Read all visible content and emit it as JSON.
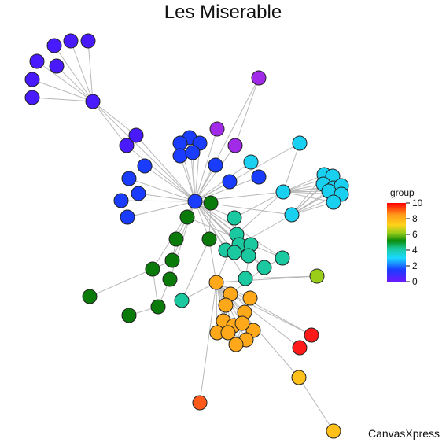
{
  "title": "Les Miserable",
  "watermark": "CanvasXpress",
  "legend": {
    "title": "group",
    "min": 0,
    "max": 10,
    "ticks": [
      "10",
      "8",
      "6",
      "4",
      "2",
      "0"
    ]
  },
  "palette": {
    "0": "#4a1aff",
    "1": "#1a3cff",
    "2": "#1ad0f0",
    "3": "#1ac9a0",
    "4": "#0a7a0a",
    "5": "#9acd1a",
    "6": "#ffc01a",
    "7": "#ffa81a",
    "8": "#ff5a1a",
    "9": "#ff1a1a",
    "10": "#ff0000",
    "violet": "#a02ae8"
  }
}
